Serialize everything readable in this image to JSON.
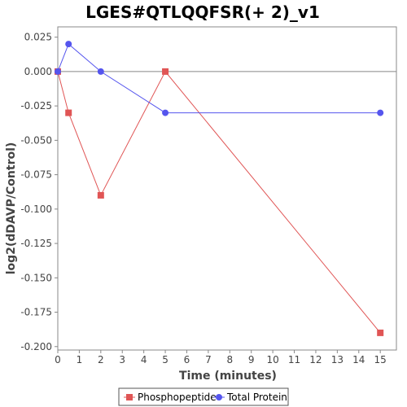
{
  "chart_data": {
    "type": "line",
    "title": "LGES#QTLQQFSR(+ 2)_v1",
    "xlabel": "Time (minutes)",
    "ylabel": "log2(dDAVP/Control)",
    "x_ticks": [
      0,
      1,
      2,
      3,
      4,
      5,
      6,
      7,
      8,
      9,
      10,
      11,
      12,
      13,
      14,
      15
    ],
    "y_ticks": [
      0.025,
      0.0,
      -0.025,
      -0.05,
      -0.075,
      -0.1,
      -0.125,
      -0.15,
      -0.175,
      -0.2
    ],
    "y_tick_labels": [
      "0.025",
      "0.000",
      "-0.025",
      "-0.050",
      "-0.075",
      "-0.100",
      "-0.125",
      "-0.150",
      "-0.175",
      "-0.200"
    ],
    "x_tick_labels": [
      "0",
      "1",
      "2",
      "3",
      "4",
      "5",
      "6",
      "7",
      "8",
      "9",
      "10",
      "11",
      "12",
      "13",
      "14",
      "15"
    ],
    "xlim": [
      0,
      15.75
    ],
    "ylim": [
      -0.2025,
      0.0325
    ],
    "grid": false,
    "zero_line": true,
    "legend_position": "bottom",
    "series": [
      {
        "name": "Phosphopeptide",
        "color": "#e05555",
        "marker": "square",
        "x": [
          0,
          0.5,
          2,
          5,
          15
        ],
        "y": [
          0.0,
          -0.03,
          -0.09,
          0.0,
          -0.19
        ]
      },
      {
        "name": "Total Protein",
        "color": "#5555ee",
        "marker": "circle",
        "x": [
          0,
          0.5,
          2,
          5,
          15
        ],
        "y": [
          0.0,
          0.02,
          0.0,
          -0.03,
          -0.03
        ]
      }
    ]
  }
}
